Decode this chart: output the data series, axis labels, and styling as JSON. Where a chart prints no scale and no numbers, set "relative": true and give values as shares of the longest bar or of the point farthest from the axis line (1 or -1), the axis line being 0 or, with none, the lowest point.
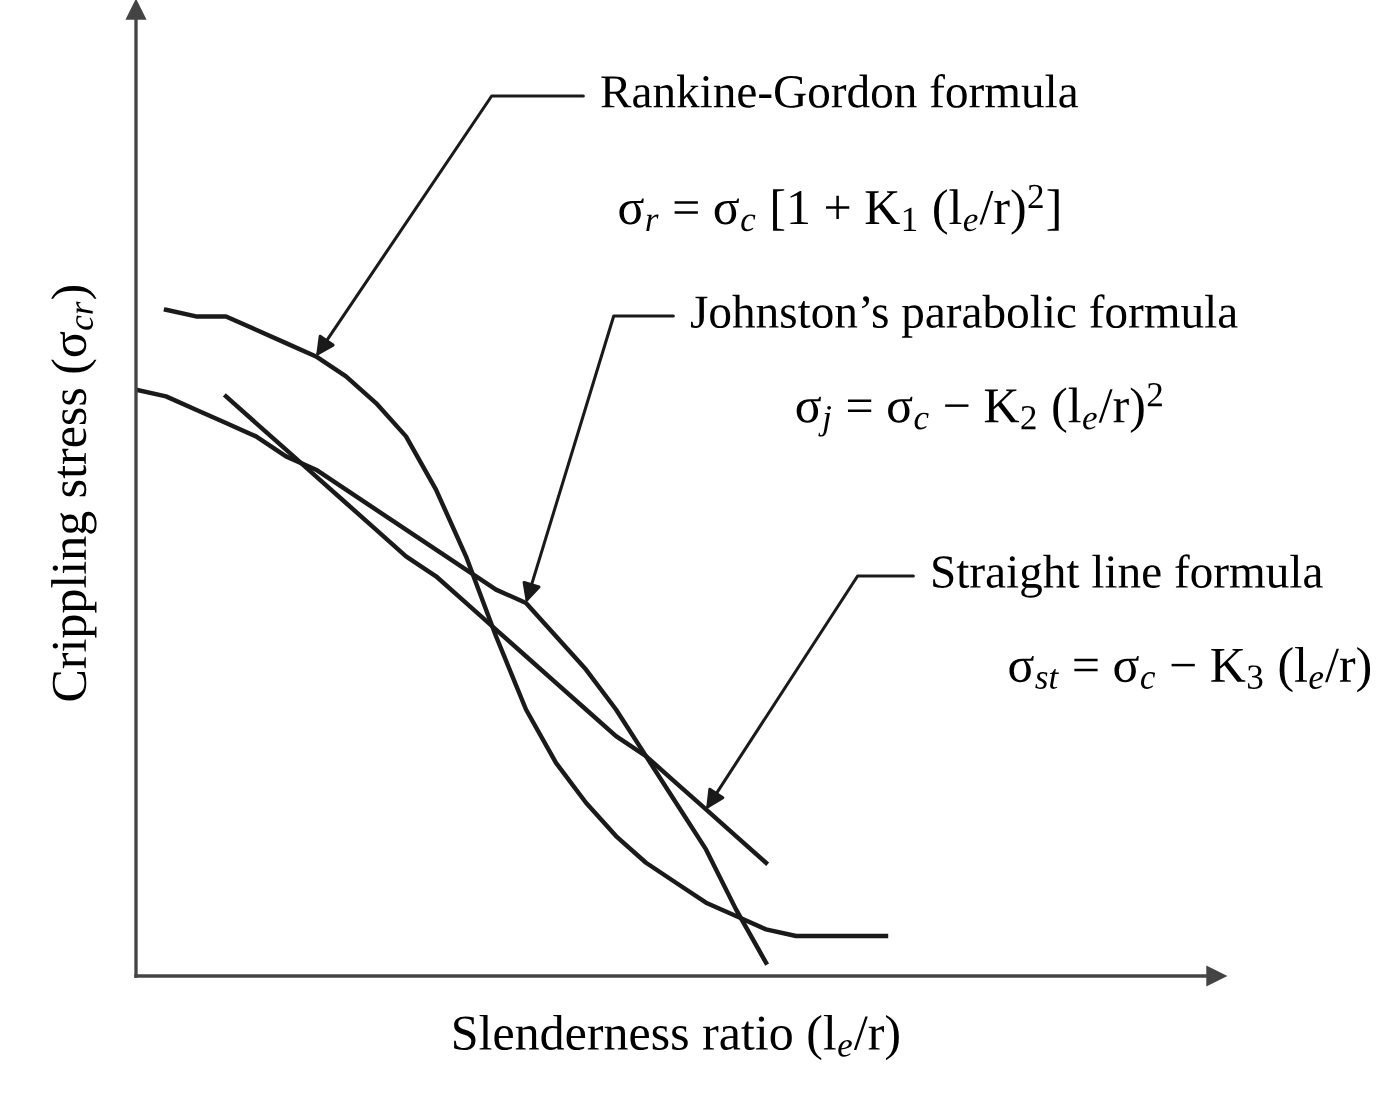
{
  "chart_data": {
    "type": "line",
    "relative": true,
    "xlabel": "Slenderness ratio (l$_{e}$/r)",
    "ylabel": "Crippling stress (σ$_{cr}$)",
    "categories": [
      null,
      null,
      null,
      null,
      null,
      null,
      null,
      null,
      null,
      null,
      null,
      null,
      null,
      null,
      null,
      null,
      null,
      null,
      null,
      null,
      null,
      null,
      null,
      null,
      null,
      null,
      null,
      null,
      null,
      null,
      null,
      null,
      null,
      null,
      null,
      null,
      null
    ],
    "series": [
      {
        "name": "Rankine-Gordon formula",
        "color": "#1a1a1a",
        "values": [
          null,
          1.0,
          0.99,
          0.99,
          0.97,
          0.95,
          0.93,
          0.9,
          0.86,
          0.81,
          0.73,
          0.63,
          0.51,
          0.4,
          0.32,
          0.26,
          0.21,
          0.17,
          0.14,
          0.11,
          0.09,
          0.07,
          0.06,
          0.06,
          0.06,
          0.06,
          null,
          null,
          null,
          null,
          null,
          null,
          null,
          null,
          null,
          null,
          null
        ]
      },
      {
        "name": "Johnston’s parabolic formula",
        "color": "#1a1a1a",
        "values": [
          0.88,
          0.87,
          0.85,
          0.83,
          0.81,
          0.78,
          0.76,
          0.73,
          0.7,
          0.67,
          0.64,
          0.61,
          0.58,
          0.56,
          0.51,
          0.46,
          0.4,
          0.33,
          0.26,
          0.19,
          0.1,
          0.02,
          null,
          null,
          null,
          null,
          null,
          null,
          null,
          null,
          null,
          null,
          null,
          null,
          null,
          null,
          null
        ]
      },
      {
        "name": "Straight line formula",
        "color": "#1a1a1a",
        "values": [
          null,
          null,
          null,
          0.87,
          0.83,
          0.79,
          0.75,
          0.71,
          0.67,
          0.63,
          0.6,
          0.56,
          0.52,
          0.48,
          0.44,
          0.4,
          0.36,
          0.33,
          0.29,
          0.25,
          0.21,
          0.17,
          null,
          null,
          null,
          null,
          null,
          null,
          null,
          null,
          null,
          null,
          null,
          null,
          null,
          null,
          null
        ]
      }
    ],
    "annotations": [
      "σ$_{r}$ = σ$_{c}$ [1 + K$_{1}$ (l$_{e}$/r)$^{2}$]",
      "σ$_{j}$ = σ$_{c}$ − K$_{2}$ (l$_{e}$/r)$^{2}$",
      "σ$_{st}$ = σ$_{c}$ − K$_{3}$ (l$_{e}$/r)"
    ],
    "legend": false,
    "line_style": "solid",
    "marker": "none"
  }
}
